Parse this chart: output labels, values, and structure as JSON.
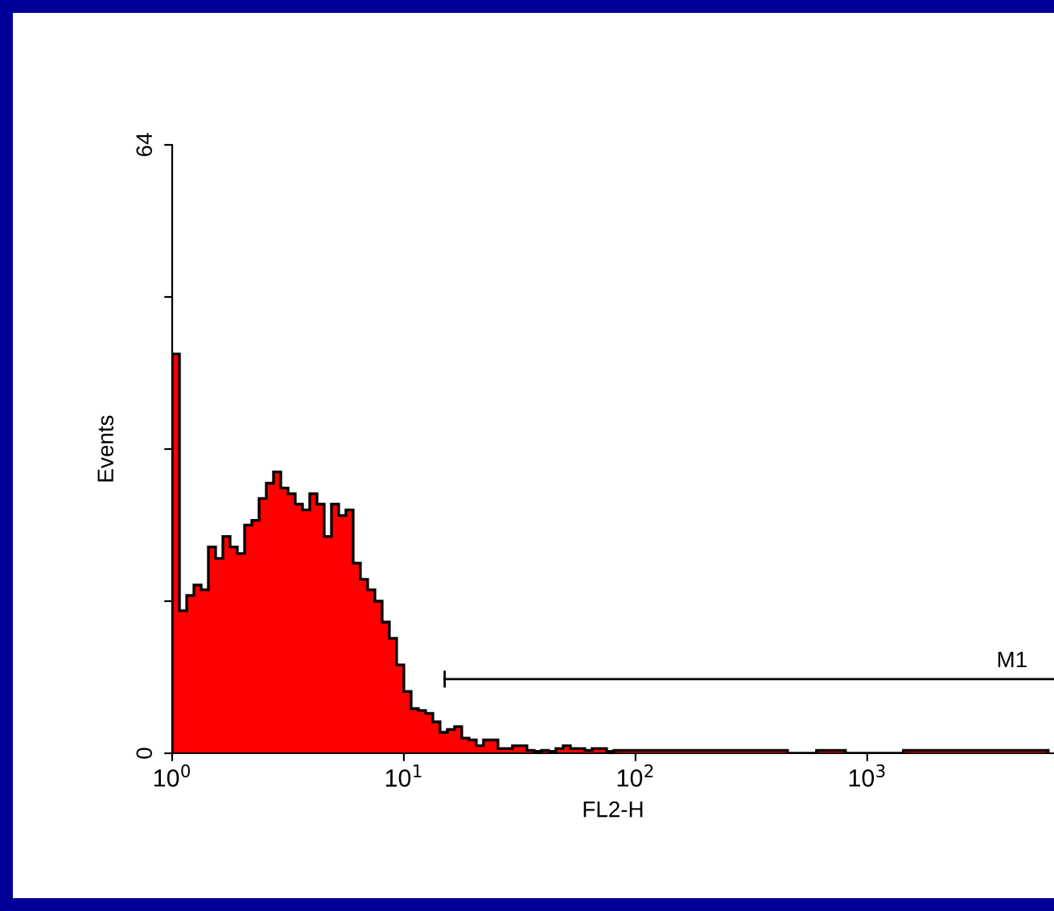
{
  "chart_data": {
    "type": "histogram",
    "xlabel": "FL2-H",
    "ylabel": "Events",
    "color": "#ff0000",
    "log": "x",
    "bins": [
      1,
      1.075,
      1.155,
      1.241,
      1.334,
      1.433,
      1.54,
      1.655,
      1.778,
      1.911,
      2.054,
      2.207,
      2.371,
      2.548,
      2.738,
      2.943,
      3.162,
      3.398,
      3.652,
      3.924,
      4.217,
      4.532,
      4.87,
      5.233,
      5.623,
      6.043,
      6.494,
      6.978,
      7.499,
      8.058,
      8.66,
      9.306,
      10,
      10.75,
      11.55,
      12.41,
      13.34,
      14.33,
      15.4,
      16.55,
      17.78,
      19.11,
      20.54,
      22.07,
      23.71,
      25.48,
      27.38,
      29.43,
      31.62,
      33.98,
      36.52,
      39.24,
      42.17,
      45.32,
      48.7,
      52.33,
      56.23,
      60.43,
      64.94,
      69.78,
      74.99,
      80.58,
      107.5,
      143.3,
      191.1,
      254.8,
      339.8,
      453.2,
      604.3,
      805.8,
      1075,
      1433,
      1911,
      2548,
      3398,
      4532,
      6043
    ],
    "values": [
      42,
      15,
      16.6,
      17.7,
      17.2,
      21.7,
      20.5,
      22.8,
      21.7,
      21,
      24,
      24.5,
      26.8,
      28.4,
      29.6,
      27.9,
      27.3,
      26.2,
      25.6,
      27.3,
      26.2,
      22.8,
      26.2,
      25,
      25.6,
      20,
      18.3,
      17.2,
      16,
      13.8,
      12.1,
      9.3,
      6.5,
      4.7,
      4.5,
      4.2,
      3.3,
      2.2,
      2.5,
      2.8,
      1.6,
      1.4,
      0.8,
      1.4,
      1.4,
      0.5,
      0.5,
      0.8,
      0.8,
      0.3,
      0.2,
      0.3,
      0.2,
      0.5,
      0.8,
      0.5,
      0.5,
      0.3,
      0.5,
      0.5,
      0.2,
      0.3,
      0.3,
      0.3,
      0.3,
      0.3,
      0.3,
      0,
      0.3,
      0,
      0,
      0.3,
      0.3,
      0.3,
      0.3,
      0.3
    ],
    "xlim": [
      1,
      6400
    ],
    "xticks": [
      {
        "value": 1,
        "label": "10$^{0}$"
      },
      {
        "value": 10,
        "label": "10$^{1}$"
      },
      {
        "value": 100,
        "label": "10$^{2}$"
      },
      {
        "value": 1000,
        "label": "10$^{3}$"
      }
    ],
    "ylim": [
      0,
      64
    ],
    "yticks": [
      0,
      {
        "value": 16,
        "label": null
      },
      {
        "value": 32,
        "label": null
      },
      {
        "value": 48,
        "label": null
      },
      64
    ],
    "series": [
      {
        "type": "line",
        "name": "M1",
        "color": "#000000",
        "x": [
          15,
          6400
        ],
        "values": [
          7.8,
          7.8
        ]
      }
    ]
  }
}
